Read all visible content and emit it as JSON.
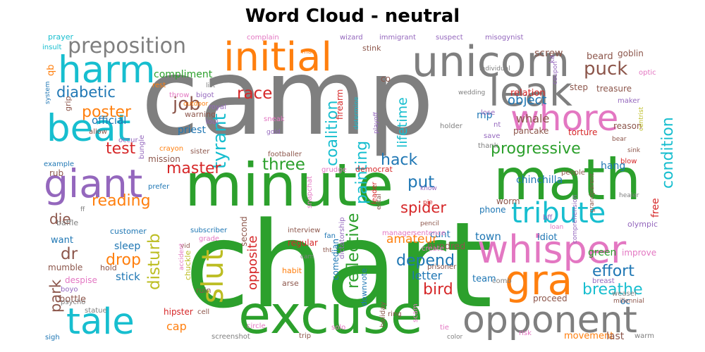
{
  "chart_data": {
    "type": "wordcloud",
    "title": "Word Cloud - neutral",
    "words": [
      {
        "text": "camp",
        "color": "#7f7f7f"
      },
      {
        "text": "chart",
        "color": "#2ca02c"
      },
      {
        "text": "minute",
        "color": "#2ca02c"
      },
      {
        "text": "excuse",
        "color": "#2ca02c"
      },
      {
        "text": "math",
        "color": "#2ca02c"
      },
      {
        "text": "unicorn",
        "color": "#7f7f7f"
      },
      {
        "text": "initial",
        "color": "#ff7f0e"
      },
      {
        "text": "leak",
        "color": "#7f7f7f"
      },
      {
        "text": "whisper",
        "color": "#e377c2"
      },
      {
        "text": "opponent",
        "color": "#7f7f7f"
      },
      {
        "text": "harm",
        "color": "#17becf"
      },
      {
        "text": "beat",
        "color": "#17becf"
      },
      {
        "text": "giant",
        "color": "#9467bd"
      },
      {
        "text": "tale",
        "color": "#17becf"
      },
      {
        "text": "whore",
        "color": "#e377c2"
      },
      {
        "text": "gra",
        "color": "#ff7f0e"
      },
      {
        "text": "slut",
        "color": "#bcbd22"
      },
      {
        "text": "tribute",
        "color": "#17becf"
      },
      {
        "text": "preposition",
        "color": "#7f7f7f"
      },
      {
        "text": "puck",
        "color": "#8c564b"
      },
      {
        "text": "diabetic",
        "color": "#1f77b4"
      },
      {
        "text": "race",
        "color": "#d62728"
      },
      {
        "text": "job",
        "color": "#8c564b"
      },
      {
        "text": "tyrant",
        "color": "#17becf"
      },
      {
        "text": "poster",
        "color": "#ff7f0e"
      },
      {
        "text": "progressive",
        "color": "#2ca02c"
      },
      {
        "text": "condition",
        "color": "#17becf"
      },
      {
        "text": "master",
        "color": "#d62728"
      },
      {
        "text": "three",
        "color": "#2ca02c"
      },
      {
        "text": "hack",
        "color": "#1f77b4"
      },
      {
        "text": "put",
        "color": "#1f77b4"
      },
      {
        "text": "test",
        "color": "#d62728"
      },
      {
        "text": "reading",
        "color": "#ff7f0e"
      },
      {
        "text": "die",
        "color": "#8c564b"
      },
      {
        "text": "spider",
        "color": "#d62728"
      },
      {
        "text": "coalition",
        "color": "#17becf"
      },
      {
        "text": "painting",
        "color": "#17becf"
      },
      {
        "text": "lifetime",
        "color": "#17becf"
      },
      {
        "text": "disturb",
        "color": "#bcbd22"
      },
      {
        "text": "drop",
        "color": "#ff7f0e"
      },
      {
        "text": "park",
        "color": "#8c564b"
      },
      {
        "text": "dr",
        "color": "#8c564b"
      },
      {
        "text": "depend",
        "color": "#1f77b4"
      },
      {
        "text": "reflective",
        "color": "#2ca02c"
      },
      {
        "text": "bird",
        "color": "#d62728"
      },
      {
        "text": "effort",
        "color": "#1f77b4"
      },
      {
        "text": "breathe",
        "color": "#17becf"
      },
      {
        "text": "opposite",
        "color": "#d62728"
      },
      {
        "text": "amateur",
        "color": "#ff7f0e"
      },
      {
        "text": "letter",
        "color": "#1f77b4"
      },
      {
        "text": "object",
        "color": "#1f77b4"
      },
      {
        "text": "whale",
        "color": "#8c564b"
      },
      {
        "text": "chinchilla",
        "color": "#1f77b4"
      },
      {
        "text": "screw",
        "color": "#8c564b"
      },
      {
        "text": "beard",
        "color": "#8c564b"
      },
      {
        "text": "goblin",
        "color": "#8c564b"
      },
      {
        "text": "treasure",
        "color": "#8c564b"
      },
      {
        "text": "compliment",
        "color": "#2ca02c"
      },
      {
        "text": "step",
        "color": "#8c564b"
      },
      {
        "text": "relation",
        "color": "#d62728"
      },
      {
        "text": "pancake",
        "color": "#8c564b"
      },
      {
        "text": "torture",
        "color": "#d62728"
      },
      {
        "text": "reason",
        "color": "#8c564b"
      },
      {
        "text": "hang",
        "color": "#1f77b4"
      },
      {
        "text": "free",
        "color": "#d62728"
      },
      {
        "text": "official",
        "color": "#1f77b4"
      },
      {
        "text": "priest",
        "color": "#1f77b4"
      },
      {
        "text": "warning",
        "color": "#8c564b"
      },
      {
        "text": "mission",
        "color": "#8c564b"
      },
      {
        "text": "second",
        "color": "#8c564b"
      },
      {
        "text": "hundred",
        "color": "#8c564b"
      },
      {
        "text": "mp",
        "color": "#1f77b4"
      },
      {
        "text": "cunt",
        "color": "#1f77b4"
      },
      {
        "text": "sleep",
        "color": "#1f77b4"
      },
      {
        "text": "stick",
        "color": "#1f77b4"
      },
      {
        "text": "want",
        "color": "#1f77b4"
      },
      {
        "text": "mumble",
        "color": "#8c564b"
      },
      {
        "text": "hold",
        "color": "#8c564b"
      },
      {
        "text": "regular",
        "color": "#d62728"
      },
      {
        "text": "comedian",
        "color": "#1f77b4"
      },
      {
        "text": "downvote",
        "color": "#1f77b4"
      },
      {
        "text": "town",
        "color": "#1f77b4"
      },
      {
        "text": "idiot",
        "color": "#1f77b4"
      },
      {
        "text": "team",
        "color": "#1f77b4"
      },
      {
        "text": "cap",
        "color": "#ff7f0e"
      },
      {
        "text": "proceed",
        "color": "#8c564b"
      },
      {
        "text": "movement",
        "color": "#ff7f0e"
      },
      {
        "text": "last",
        "color": "#8c564b"
      },
      {
        "text": "green",
        "color": "#2ca02c"
      },
      {
        "text": "improve",
        "color": "#e377c2"
      },
      {
        "text": "oc",
        "color": "#1f77b4"
      },
      {
        "text": "bottle",
        "color": "#8c564b"
      },
      {
        "text": "hipster",
        "color": "#d62728"
      },
      {
        "text": "prayer",
        "color": "#17becf"
      },
      {
        "text": "insult",
        "color": "#17becf"
      },
      {
        "text": "complain",
        "color": "#e377c2"
      },
      {
        "text": "wizard",
        "color": "#9467bd"
      },
      {
        "text": "immigrant",
        "color": "#9467bd"
      },
      {
        "text": "suspect",
        "color": "#9467bd"
      },
      {
        "text": "misogynist",
        "color": "#9467bd"
      },
      {
        "text": "stink",
        "color": "#8c564b"
      },
      {
        "text": "man",
        "color": "#ff7f0e"
      },
      {
        "text": "optic",
        "color": "#e377c2"
      },
      {
        "text": "rest",
        "color": "#ff7f0e"
      },
      {
        "text": "list",
        "color": "#7f7f7f"
      },
      {
        "text": "bigot",
        "color": "#9467bd"
      },
      {
        "text": "royal",
        "color": "#9467bd"
      },
      {
        "text": "loui",
        "color": "#9467bd"
      },
      {
        "text": "throw",
        "color": "#e377c2"
      },
      {
        "text": "sneak",
        "color": "#e377c2"
      },
      {
        "text": "gold",
        "color": "#9467bd"
      },
      {
        "text": "individual",
        "color": "#7f7f7f"
      },
      {
        "text": "wedding",
        "color": "#7f7f7f"
      },
      {
        "text": "maker",
        "color": "#9467bd"
      },
      {
        "text": "coupon",
        "color": "#9467bd"
      },
      {
        "text": "lose",
        "color": "#9467bd"
      },
      {
        "text": "holder",
        "color": "#7f7f7f"
      },
      {
        "text": "save",
        "color": "#9467bd"
      },
      {
        "text": "thank",
        "color": "#7f7f7f"
      },
      {
        "text": "bear",
        "color": "#8c564b"
      },
      {
        "text": "sink",
        "color": "#8c564b"
      },
      {
        "text": "blow",
        "color": "#d62728"
      },
      {
        "text": "centrist",
        "color": "#bcbd22"
      },
      {
        "text": "firearm",
        "color": "#d62728"
      },
      {
        "text": "playoff",
        "color": "#9467bd"
      },
      {
        "text": "grip",
        "color": "#8c564b"
      },
      {
        "text": "allow",
        "color": "#8c564b"
      },
      {
        "text": "system",
        "color": "#1f77b4"
      },
      {
        "text": "qb",
        "color": "#ff7f0e"
      },
      {
        "text": "occur",
        "color": "#9467bd"
      },
      {
        "text": "bungle",
        "color": "#9467bd"
      },
      {
        "text": "crayon",
        "color": "#ff7f0e"
      },
      {
        "text": "sister",
        "color": "#8c564b"
      },
      {
        "text": "footballer",
        "color": "#8c564b"
      },
      {
        "text": "people",
        "color": "#8c564b"
      },
      {
        "text": "grudge",
        "color": "#e377c2"
      },
      {
        "text": "democrat",
        "color": "#d62728"
      },
      {
        "text": "rub",
        "color": "#8c564b"
      },
      {
        "text": "example",
        "color": "#1f77b4"
      },
      {
        "text": "prefer",
        "color": "#1f77b4"
      },
      {
        "text": "customer",
        "color": "#1f77b4"
      },
      {
        "text": "subscriber",
        "color": "#1f77b4"
      },
      {
        "text": "interview",
        "color": "#8c564b"
      },
      {
        "text": "snapchat",
        "color": "#e377c2"
      },
      {
        "text": "fan",
        "color": "#1f77b4"
      },
      {
        "text": "manager",
        "color": "#e377c2"
      },
      {
        "text": "sentence",
        "color": "#e377c2"
      },
      {
        "text": "pencil",
        "color": "#8c564b"
      },
      {
        "text": "know",
        "color": "#9467bd"
      },
      {
        "text": "phone",
        "color": "#1f77b4"
      },
      {
        "text": "worm",
        "color": "#8c564b"
      },
      {
        "text": "bff",
        "color": "#9467bd"
      },
      {
        "text": "comprehension",
        "color": "#9467bd"
      },
      {
        "text": "olympic",
        "color": "#9467bd"
      },
      {
        "text": "grandparent",
        "color": "#8c564b"
      },
      {
        "text": "healer",
        "color": "#7f7f7f"
      },
      {
        "text": "loan",
        "color": "#e377c2"
      },
      {
        "text": "baffle",
        "color": "#7f7f7f"
      },
      {
        "text": "despise",
        "color": "#e377c2"
      },
      {
        "text": "boyo",
        "color": "#9467bd"
      },
      {
        "text": "psycho",
        "color": "#7f7f7f"
      },
      {
        "text": "grade",
        "color": "#e377c2"
      },
      {
        "text": "vid",
        "color": "#8c564b"
      },
      {
        "text": "accident",
        "color": "#e377c2"
      },
      {
        "text": "chuckle",
        "color": "#bcbd22"
      },
      {
        "text": "ruin",
        "color": "#8c564b"
      },
      {
        "text": "arse",
        "color": "#8c564b"
      },
      {
        "text": "habit",
        "color": "#ff7f0e"
      },
      {
        "text": "dictatorship",
        "color": "#9467bd"
      },
      {
        "text": "create",
        "color": "#e377c2"
      },
      {
        "text": "prisoner",
        "color": "#8c564b"
      },
      {
        "text": "comb",
        "color": "#7f7f7f"
      },
      {
        "text": "breast",
        "color": "#9467bd"
      },
      {
        "text": "weasel",
        "color": "#7f7f7f"
      },
      {
        "text": "statue",
        "color": "#7f7f7f"
      },
      {
        "text": "cell",
        "color": "#8c564b"
      },
      {
        "text": "circle",
        "color": "#e377c2"
      },
      {
        "text": "screenshot",
        "color": "#7f7f7f"
      },
      {
        "text": "trip",
        "color": "#8c564b"
      },
      {
        "text": "solo",
        "color": "#e377c2"
      },
      {
        "text": "holiday",
        "color": "#8c564b"
      },
      {
        "text": "scam",
        "color": "#e377c2"
      },
      {
        "text": "ring",
        "color": "#8c564b"
      },
      {
        "text": "tie",
        "color": "#e377c2"
      },
      {
        "text": "color",
        "color": "#7f7f7f"
      },
      {
        "text": "risk",
        "color": "#e377c2"
      },
      {
        "text": "warm",
        "color": "#7f7f7f"
      },
      {
        "text": "sigh",
        "color": "#1f77b4"
      },
      {
        "text": "ff",
        "color": "#7f7f7f"
      },
      {
        "text": "cam",
        "color": "#7f7f7f"
      },
      {
        "text": "outdoor",
        "color": "#ff7f0e"
      },
      {
        "text": "nt",
        "color": "#9467bd"
      },
      {
        "text": "co",
        "color": "#8c564b"
      },
      {
        "text": "ka",
        "color": "#9467bd"
      },
      {
        "text": "tht",
        "color": "#8c564b"
      },
      {
        "text": "ental",
        "color": "#8c564b"
      },
      {
        "text": "millennial",
        "color": "#8c564b"
      },
      {
        "text": "determine",
        "color": "#17becf"
      },
      {
        "text": "pie",
        "color": "#d62728"
      },
      {
        "text": "leader",
        "color": "#d62728"
      }
    ]
  }
}
